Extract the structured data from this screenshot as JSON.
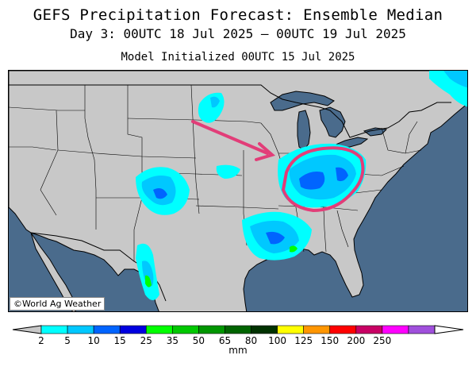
{
  "header": {
    "title": "GEFS Precipitation Forecast: Ensemble Median",
    "subtitle": "Day 3: 00UTC 18 Jul 2025 — 00UTC 19 Jul 2025",
    "init": "Model Initialized 00UTC 15 Jul 2025"
  },
  "map": {
    "credit": "©World Ag Weather",
    "colors": {
      "land": "#c8c8c8",
      "water": "#4a6b8c",
      "borders": "#000000",
      "highlight": "#e23d78"
    }
  },
  "legend": {
    "unit": "mm",
    "ticks": [
      "2",
      "5",
      "10",
      "15",
      "25",
      "35",
      "50",
      "65",
      "80",
      "100",
      "125",
      "150",
      "200",
      "250"
    ],
    "colors": [
      "#00ffff",
      "#00c8ff",
      "#0064ff",
      "#0000e0",
      "#00ff00",
      "#00c800",
      "#009600",
      "#006400",
      "#003200",
      "#ffff00",
      "#ff9600",
      "#ff0000",
      "#c80064",
      "#ff00ff",
      "#a050dc"
    ],
    "under_color": "#c8c8c8",
    "over_color": "#ffffff"
  }
}
